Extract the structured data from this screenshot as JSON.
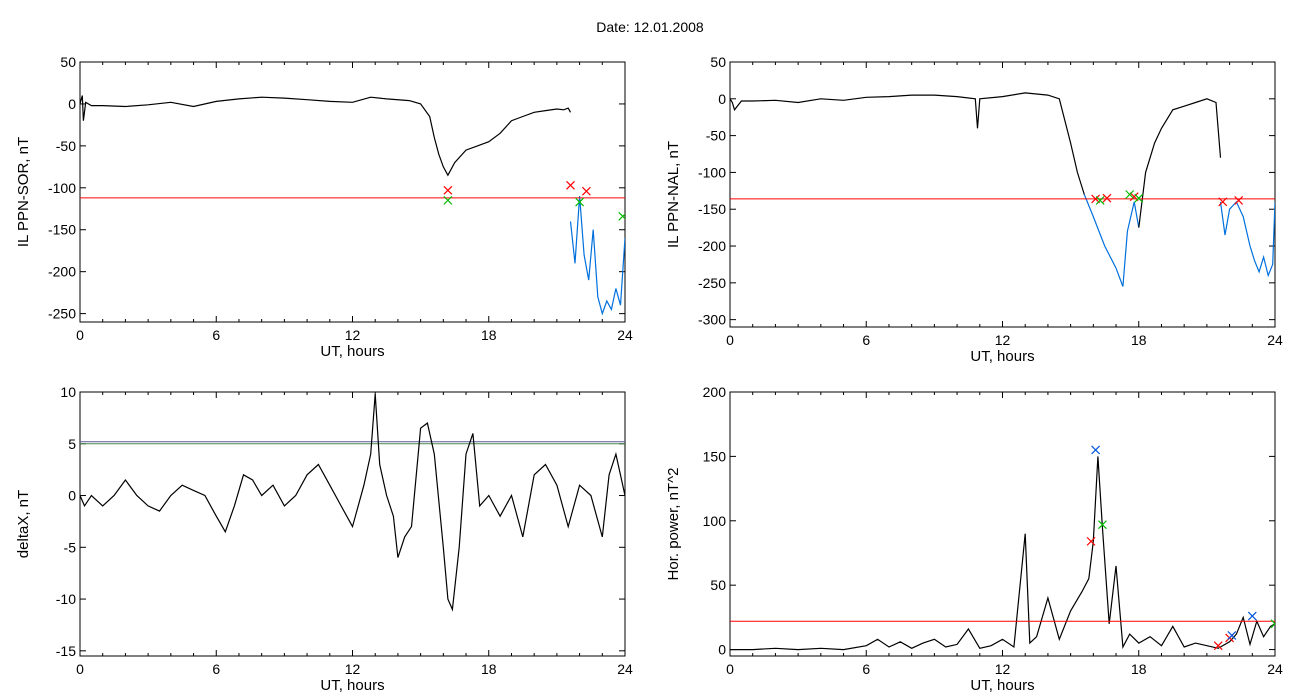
{
  "page": {
    "title": "Date:  12.01.2008"
  },
  "chart_data": [
    {
      "id": "p1",
      "type": "line",
      "xlabel": "UT, hours",
      "ylabel": "IL PPN-SOR, nT",
      "xlim": [
        0,
        24
      ],
      "ylim": [
        -260,
        50
      ],
      "xticks": [
        0,
        6,
        12,
        18,
        24
      ],
      "yticks": [
        50,
        0,
        -50,
        -100,
        -150,
        -200,
        -250
      ],
      "threshold": -112,
      "series": [
        {
          "color": "#000000",
          "x": [
            0,
            0.1,
            0.15,
            0.25,
            0.5,
            1,
            2,
            3,
            4,
            5,
            6,
            7,
            8,
            9,
            10,
            11,
            12,
            12.8,
            13.5,
            14.5,
            15,
            15.4,
            15.6,
            15.8,
            16,
            16.2,
            16.5,
            17,
            17.5,
            18,
            18.5,
            19,
            19.5,
            20,
            20.5,
            21,
            21.3,
            21.5,
            21.6
          ],
          "y": [
            0,
            10,
            -20,
            2,
            -2,
            -2,
            -3,
            -1,
            2,
            -3,
            3,
            6,
            8,
            7,
            5,
            3,
            2,
            8,
            6,
            4,
            0,
            -15,
            -40,
            -60,
            -75,
            -85,
            -70,
            -55,
            -50,
            -45,
            -35,
            -20,
            -15,
            -10,
            -8,
            -6,
            -7,
            -5,
            -10
          ]
        },
        {
          "color": "#0070dd",
          "x": [
            21.6,
            21.8,
            22,
            22.2,
            22.4,
            22.6,
            22.8,
            23,
            23.2,
            23.4,
            23.6,
            23.8,
            24
          ],
          "y": [
            -140,
            -190,
            -110,
            -180,
            -210,
            -150,
            -230,
            -250,
            -235,
            -245,
            -220,
            -240,
            -160
          ]
        }
      ],
      "markers": [
        {
          "x": 16.2,
          "y": -103,
          "color": "#ff0000"
        },
        {
          "x": 16.2,
          "y": -115,
          "color": "#00bb00"
        },
        {
          "x": 21.6,
          "y": -97,
          "color": "#ff0000"
        },
        {
          "x": 22.3,
          "y": -104,
          "color": "#ff0000"
        },
        {
          "x": 22.0,
          "y": -117,
          "color": "#00bb00"
        },
        {
          "x": 23.9,
          "y": -134,
          "color": "#00bb00"
        }
      ]
    },
    {
      "id": "p2",
      "type": "line",
      "xlabel": "UT, hours",
      "ylabel": "IL PPN-NAL, nT",
      "xlim": [
        0,
        24
      ],
      "ylim": [
        -310,
        50
      ],
      "xticks": [
        0,
        6,
        12,
        18,
        24
      ],
      "yticks": [
        50,
        0,
        -50,
        -100,
        -150,
        -200,
        -250,
        -300
      ],
      "threshold": -136,
      "series": [
        {
          "color": "#000000",
          "x": [
            0,
            0.1,
            0.2,
            0.5,
            1,
            2,
            3,
            4,
            5,
            6,
            7,
            8,
            9,
            10,
            10.8,
            10.9,
            11,
            12,
            13,
            14,
            14.5,
            15,
            15.3,
            15.6
          ],
          "y": [
            0,
            -5,
            -15,
            -3,
            -3,
            -2,
            -5,
            0,
            -2,
            2,
            3,
            5,
            5,
            3,
            0,
            -40,
            0,
            3,
            8,
            5,
            0,
            -60,
            -100,
            -130
          ]
        },
        {
          "color": "#0070dd",
          "x": [
            15.6,
            16,
            16.5,
            17,
            17.3,
            17.5,
            17.8,
            18
          ],
          "y": [
            -130,
            -160,
            -200,
            -230,
            -255,
            -180,
            -140,
            -175
          ]
        },
        {
          "color": "#000000",
          "x": [
            18,
            18.3,
            18.7,
            19,
            19.5,
            20,
            20.5,
            21,
            21.4,
            21.6
          ],
          "y": [
            -175,
            -100,
            -60,
            -40,
            -15,
            -10,
            -5,
            0,
            -5,
            -80
          ]
        },
        {
          "color": "#0070dd",
          "x": [
            21.6,
            21.8,
            22,
            22.3,
            22.6,
            22.9,
            23.1,
            23.3,
            23.5,
            23.7,
            23.9,
            24
          ],
          "y": [
            -140,
            -185,
            -150,
            -140,
            -160,
            -200,
            -220,
            -235,
            -215,
            -240,
            -225,
            -140
          ]
        }
      ],
      "markers": [
        {
          "x": 16.1,
          "y": -136,
          "color": "#ff0000"
        },
        {
          "x": 16.6,
          "y": -135,
          "color": "#ff0000"
        },
        {
          "x": 16.3,
          "y": -138,
          "color": "#00bb00"
        },
        {
          "x": 17.8,
          "y": -133,
          "color": "#ff0000"
        },
        {
          "x": 18.0,
          "y": -135,
          "color": "#00bb00"
        },
        {
          "x": 17.6,
          "y": -130,
          "color": "#00bb00"
        },
        {
          "x": 21.7,
          "y": -140,
          "color": "#ff0000"
        },
        {
          "x": 22.4,
          "y": -138,
          "color": "#ff0000"
        }
      ]
    },
    {
      "id": "p3",
      "type": "line",
      "xlabel": "UT, hours",
      "ylabel": "deltaX, nT",
      "xlim": [
        0,
        24
      ],
      "ylim": [
        -15.5,
        10
      ],
      "xticks": [
        0,
        6,
        12,
        18,
        24
      ],
      "yticks": [
        10,
        5,
        0,
        -5,
        -10,
        -15
      ],
      "hlines": [
        {
          "y": 5.2,
          "color": "#5a5aa0"
        },
        {
          "y": 5.0,
          "color": "#4a8a4a"
        }
      ],
      "series": [
        {
          "color": "#000000",
          "x": [
            0,
            0.2,
            0.5,
            1,
            1.5,
            2,
            2.5,
            3,
            3.5,
            4,
            4.5,
            5,
            5.5,
            6,
            6.4,
            6.8,
            7.2,
            7.6,
            8,
            8.5,
            9,
            9.5,
            10,
            10.5,
            11,
            11.5,
            12,
            12.5,
            12.8,
            13,
            13.2,
            13.5,
            13.8,
            14,
            14.3,
            14.6,
            15,
            15.3,
            15.6,
            16,
            16.2,
            16.4,
            16.7,
            17,
            17.3,
            17.6,
            18,
            18.5,
            19,
            19.5,
            20,
            20.5,
            21,
            21.5,
            22,
            22.5,
            23,
            23.3,
            23.6,
            24
          ],
          "y": [
            0,
            -1,
            0,
            -1,
            0,
            1.5,
            0,
            -1,
            -1.5,
            0,
            1,
            0.5,
            0,
            -2,
            -3.5,
            -1,
            2,
            1.5,
            0,
            1,
            -1,
            0,
            2,
            3,
            1,
            -1,
            -3,
            1,
            4,
            9.8,
            3,
            0,
            -2,
            -6,
            -4,
            -3,
            6.5,
            7,
            4,
            -5,
            -10,
            -11,
            -5,
            4,
            6,
            -1,
            0,
            -2,
            0,
            -4,
            2,
            3,
            1,
            -3,
            1,
            0,
            -4,
            2,
            4,
            0
          ]
        }
      ],
      "markers": []
    },
    {
      "id": "p4",
      "type": "line",
      "xlabel": "UT, hours",
      "ylabel": "Hor. power, nT^2",
      "xlim": [
        0,
        24
      ],
      "ylim": [
        -5,
        200
      ],
      "xticks": [
        0,
        6,
        12,
        18,
        24
      ],
      "yticks": [
        200,
        150,
        100,
        50,
        0
      ],
      "threshold": 22,
      "series": [
        {
          "color": "#000000",
          "x": [
            0,
            1,
            2,
            3,
            4,
            5,
            6,
            6.5,
            7,
            7.5,
            8,
            8.5,
            9,
            9.5,
            10,
            10.5,
            11,
            11.5,
            12,
            12.5,
            13,
            13.2,
            13.5,
            14,
            14.5,
            15,
            15.5,
            15.8,
            16,
            16.2,
            16.4,
            16.7,
            17,
            17.3,
            17.6,
            18,
            18.5,
            19,
            19.5,
            20,
            20.5,
            21,
            21.5,
            22,
            22.3,
            22.6,
            22.9,
            23.2,
            23.5,
            23.8,
            24
          ],
          "y": [
            0,
            0,
            1,
            0,
            1,
            0,
            3,
            8,
            2,
            6,
            1,
            5,
            8,
            2,
            4,
            16,
            1,
            3,
            8,
            2,
            90,
            5,
            10,
            40,
            8,
            30,
            45,
            55,
            84,
            150,
            95,
            20,
            65,
            2,
            12,
            5,
            10,
            3,
            18,
            2,
            5,
            3,
            1,
            6,
            12,
            25,
            4,
            22,
            10,
            18,
            20
          ]
        }
      ],
      "markers": [
        {
          "x": 16.1,
          "y": 155,
          "color": "#0055dd"
        },
        {
          "x": 15.9,
          "y": 84,
          "color": "#ff0000"
        },
        {
          "x": 16.4,
          "y": 97,
          "color": "#00bb00"
        },
        {
          "x": 21.5,
          "y": 3,
          "color": "#ff0000"
        },
        {
          "x": 22.0,
          "y": 9,
          "color": "#ff0000"
        },
        {
          "x": 22.1,
          "y": 11,
          "color": "#0055dd"
        },
        {
          "x": 23.0,
          "y": 26,
          "color": "#0055dd"
        },
        {
          "x": 24.0,
          "y": 20,
          "color": "#00bb00"
        }
      ]
    }
  ]
}
